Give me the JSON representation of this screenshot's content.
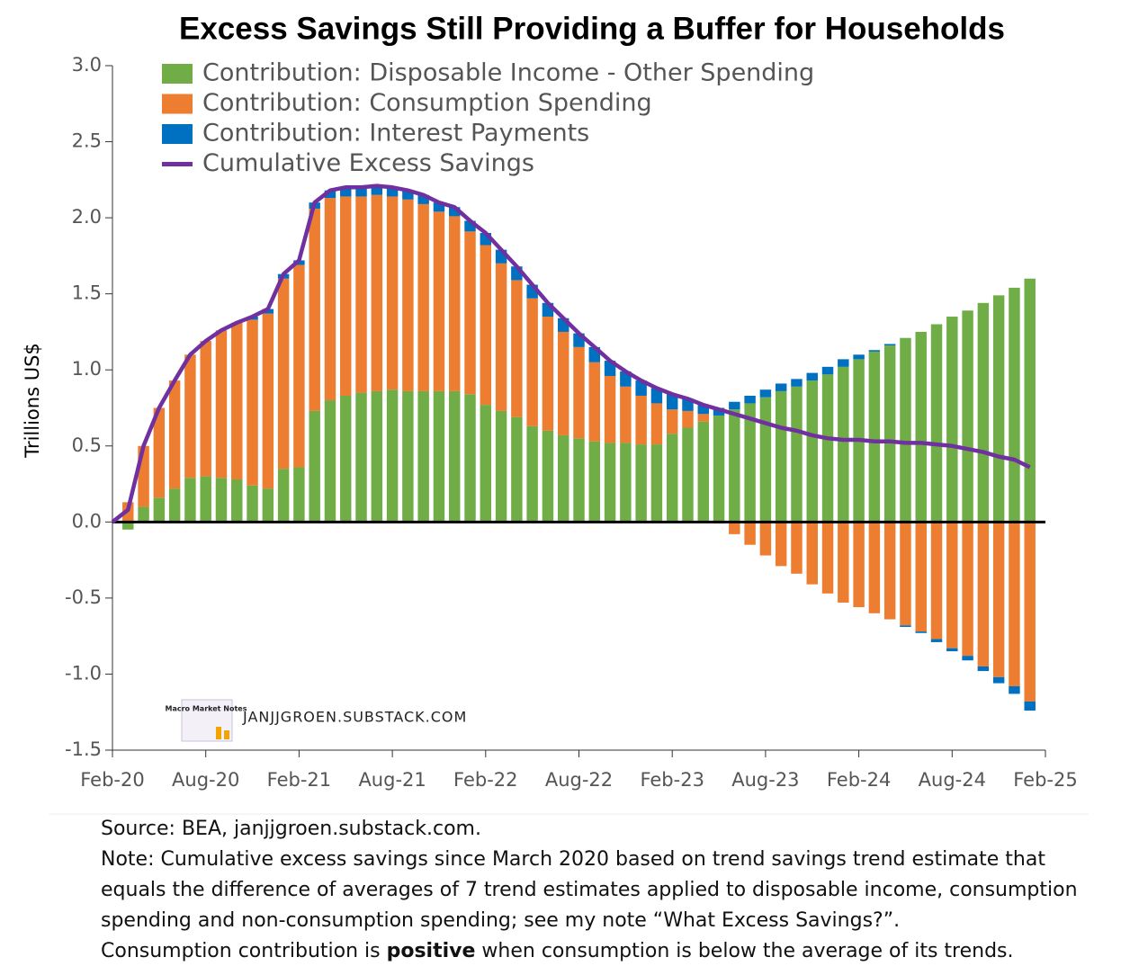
{
  "chart_data": {
    "type": "bar",
    "title": "Excess Savings Still Providing a Buffer for Households",
    "y_label": "Trillions US$",
    "x": [
      "2020-02",
      "2020-03",
      "2020-04",
      "2020-05",
      "2020-06",
      "2020-07",
      "2020-08",
      "2020-09",
      "2020-10",
      "2020-11",
      "2020-12",
      "2021-01",
      "2021-02",
      "2021-03",
      "2021-04",
      "2021-05",
      "2021-06",
      "2021-07",
      "2021-08",
      "2021-09",
      "2021-10",
      "2021-11",
      "2021-12",
      "2022-01",
      "2022-02",
      "2022-03",
      "2022-04",
      "2022-05",
      "2022-06",
      "2022-07",
      "2022-08",
      "2022-09",
      "2022-10",
      "2022-11",
      "2022-12",
      "2023-01",
      "2023-02",
      "2023-03",
      "2023-04",
      "2023-05",
      "2023-06",
      "2023-07",
      "2023-08",
      "2023-09",
      "2023-10",
      "2023-11",
      "2023-12",
      "2024-01",
      "2024-02",
      "2024-03",
      "2024-04",
      "2024-05",
      "2024-06",
      "2024-07",
      "2024-08",
      "2024-09",
      "2024-10",
      "2024-11",
      "2024-12",
      "2025-01"
    ],
    "series": [
      {
        "name": "Contribution: Disposable Income - Other Spending",
        "type": "bar",
        "color": "#70ad47",
        "values": [
          null,
          -0.05,
          0.1,
          0.16,
          0.22,
          0.29,
          0.3,
          0.29,
          0.28,
          0.24,
          0.22,
          0.35,
          0.36,
          0.73,
          0.8,
          0.83,
          0.85,
          0.86,
          0.87,
          0.86,
          0.86,
          0.86,
          0.86,
          0.84,
          0.77,
          0.73,
          0.69,
          0.63,
          0.6,
          0.57,
          0.55,
          0.53,
          0.52,
          0.52,
          0.51,
          0.51,
          0.58,
          0.62,
          0.66,
          0.7,
          0.74,
          0.78,
          0.82,
          0.86,
          0.89,
          0.93,
          0.97,
          1.02,
          1.07,
          1.12,
          1.16,
          1.21,
          1.25,
          1.3,
          1.35,
          1.39,
          1.44,
          1.49,
          1.54,
          1.6
        ]
      },
      {
        "name": "Contribution: Consumption Spending",
        "type": "bar",
        "color": "#ed7d31",
        "values": [
          null,
          0.13,
          0.4,
          0.59,
          0.71,
          0.81,
          0.89,
          0.97,
          1.03,
          1.09,
          1.15,
          1.25,
          1.33,
          1.33,
          1.33,
          1.31,
          1.29,
          1.29,
          1.27,
          1.26,
          1.23,
          1.18,
          1.15,
          1.07,
          1.05,
          0.97,
          0.9,
          0.84,
          0.75,
          0.68,
          0.6,
          0.52,
          0.44,
          0.37,
          0.32,
          0.27,
          0.16,
          0.11,
          0.05,
          -0.01,
          -0.08,
          -0.15,
          -0.22,
          -0.29,
          -0.34,
          -0.41,
          -0.47,
          -0.53,
          -0.56,
          -0.6,
          -0.64,
          -0.68,
          -0.72,
          -0.77,
          -0.83,
          -0.88,
          -0.95,
          -1.02,
          -1.08,
          -1.18
        ]
      },
      {
        "name": "Contribution: Interest Payments",
        "type": "bar",
        "color": "#0070c0",
        "values": [
          null,
          0,
          0,
          0,
          0,
          0,
          0,
          0,
          0,
          0.02,
          0.03,
          0.03,
          0.03,
          0.04,
          0.05,
          0.06,
          0.06,
          0.06,
          0.06,
          0.06,
          0.06,
          0.06,
          0.06,
          0.07,
          0.08,
          0.09,
          0.09,
          0.09,
          0.09,
          0.09,
          0.09,
          0.1,
          0.1,
          0.1,
          0.1,
          0.1,
          0.1,
          0.08,
          0.06,
          0.05,
          0.05,
          0.05,
          0.05,
          0.05,
          0.05,
          0.05,
          0.05,
          0.05,
          0.03,
          0.01,
          0.01,
          -0.01,
          -0.01,
          -0.02,
          -0.02,
          -0.03,
          -0.03,
          -0.04,
          -0.05,
          -0.06
        ]
      },
      {
        "name": "Cumulative Excess Savings",
        "type": "line",
        "color": "#7030a0",
        "values": [
          0,
          0.08,
          0.5,
          0.75,
          0.93,
          1.1,
          1.19,
          1.26,
          1.31,
          1.35,
          1.4,
          1.63,
          1.72,
          2.1,
          2.18,
          2.2,
          2.2,
          2.21,
          2.2,
          2.18,
          2.15,
          2.1,
          2.07,
          1.98,
          1.9,
          1.79,
          1.68,
          1.56,
          1.44,
          1.34,
          1.24,
          1.15,
          1.06,
          0.99,
          0.93,
          0.88,
          0.84,
          0.81,
          0.77,
          0.74,
          0.71,
          0.68,
          0.65,
          0.62,
          0.6,
          0.57,
          0.55,
          0.54,
          0.54,
          0.53,
          0.53,
          0.52,
          0.52,
          0.51,
          0.5,
          0.48,
          0.46,
          0.43,
          0.41,
          0.36
        ]
      }
    ],
    "ylim": [
      -1.5,
      3.0
    ],
    "yticks": [
      {
        "value": 3,
        "label": "3.0"
      },
      2.5,
      {
        "value": 2,
        "label": "2.0"
      },
      1.5,
      {
        "value": 1,
        "label": "1.0"
      },
      0.5,
      {
        "value": 0,
        "label": "0.0"
      },
      -0.5,
      {
        "value": -1,
        "label": "-1.0"
      },
      -1.5
    ],
    "xlim": [
      "2020-02",
      "2025-02"
    ],
    "xticks": [
      {
        "value": "2020-02",
        "label": "Feb-20"
      },
      {
        "value": "2020-08",
        "label": "Aug-20"
      },
      {
        "value": "2021-02",
        "label": "Feb-21"
      },
      {
        "value": "2021-08",
        "label": "Aug-21"
      },
      {
        "value": "2022-02",
        "label": "Feb-22"
      },
      {
        "value": "2022-08",
        "label": "Aug-22"
      },
      {
        "value": "2023-02",
        "label": "Feb-23"
      },
      {
        "value": "2023-08",
        "label": "Aug-23"
      },
      {
        "value": "2024-02",
        "label": "Feb-24"
      },
      {
        "value": "2024-08",
        "label": "Aug-24"
      },
      {
        "value": "2025-02",
        "label": "Feb-25"
      }
    ],
    "legend": "upper left",
    "grid": false
  },
  "watermark": {
    "logo_text": "Macro Market Notes",
    "site": "JANJJGROEN.SUBSTACK.COM"
  },
  "footer": {
    "source": "Source: BEA, janjjgroen.substack.com.",
    "note_lines": [
      "Note: Cumulative excess savings since March 2020 based on trend savings trend estimate that",
      "equals the difference of averages of 7 trend estimates applied to disposable income, consumption",
      "spending and non-consumption spending; see my note “What Excess Savings?”."
    ],
    "last_line": [
      "Consumption contribution is ",
      "positive",
      " when consumption is below the average of its trends."
    ]
  }
}
